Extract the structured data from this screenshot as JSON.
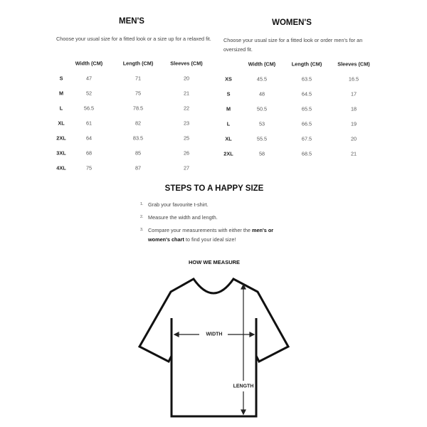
{
  "mens": {
    "title": "MEN'S",
    "description": "Choose your usual size for a fitted look or a size up for a relaxed fit.",
    "headers": [
      "Width (CM)",
      "Length (CM)",
      "Sleeves (CM)"
    ],
    "rows": [
      {
        "size": "S",
        "width": "47",
        "length": "71",
        "sleeves": "20"
      },
      {
        "size": "M",
        "width": "52",
        "length": "75",
        "sleeves": "21"
      },
      {
        "size": "L",
        "width": "56.5",
        "length": "78.5",
        "sleeves": "22"
      },
      {
        "size": "XL",
        "width": "61",
        "length": "82",
        "sleeves": "23"
      },
      {
        "size": "2XL",
        "width": "64",
        "length": "83.5",
        "sleeves": "25"
      },
      {
        "size": "3XL",
        "width": "68",
        "length": "85",
        "sleeves": "26"
      },
      {
        "size": "4XL",
        "width": "75",
        "length": "87",
        "sleeves": "27"
      }
    ]
  },
  "womens": {
    "title": "WOMEN'S",
    "description": "Choose your usual size for a fitted look or order men's for an oversized fit.",
    "headers": [
      "Width (CM)",
      "Length (CM)",
      "Sleeves (CM)"
    ],
    "rows": [
      {
        "size": "XS",
        "width": "45.5",
        "length": "63.5",
        "sleeves": "16.5"
      },
      {
        "size": "S",
        "width": "48",
        "length": "64.5",
        "sleeves": "17"
      },
      {
        "size": "M",
        "width": "50.5",
        "length": "65.5",
        "sleeves": "18"
      },
      {
        "size": "L",
        "width": "53",
        "length": "66.5",
        "sleeves": "19"
      },
      {
        "size": "XL",
        "width": "55.5",
        "length": "67.5",
        "sleeves": "20"
      },
      {
        "size": "2XL",
        "width": "58",
        "length": "68.5",
        "sleeves": "21"
      }
    ]
  },
  "steps": {
    "title": "STEPS TO A HAPPY SIZE",
    "items": [
      {
        "num": "1.",
        "text": "Grab your favourite t-shirt."
      },
      {
        "num": "2.",
        "text": "Measure the width and length."
      },
      {
        "num": "3.",
        "text_before": "Compare your measurements with either the ",
        "bold1": "men's or",
        "bold2": "women's chart",
        "text_after": " to find your ideal size!"
      }
    ]
  },
  "measure": {
    "title": "HOW WE MEASURE",
    "width_label": "WIDTH",
    "length_label": "LENGTH"
  }
}
